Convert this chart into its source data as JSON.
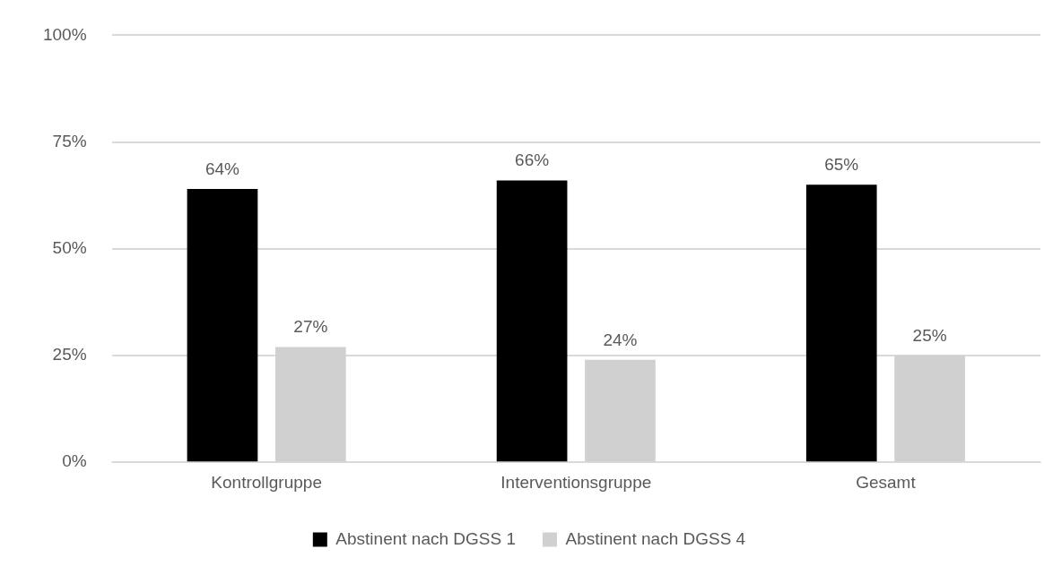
{
  "chart_data": {
    "type": "bar",
    "categories": [
      "Kontrollgruppe",
      "Interventionsgruppe",
      "Gesamt"
    ],
    "series": [
      {
        "name": "Abstinent nach DGSS 1",
        "color": "#000000",
        "values": [
          64,
          66,
          65
        ],
        "value_labels": [
          "64%",
          "66%",
          "65%"
        ]
      },
      {
        "name": "Abstinent nach DGSS 4",
        "color": "#d0d0d0",
        "values": [
          27,
          24,
          25
        ],
        "value_labels": [
          "27%",
          "24%",
          "25%"
        ]
      }
    ],
    "ylim": [
      0,
      100
    ],
    "yticks": [
      {
        "value": 0,
        "label": "0%"
      },
      {
        "value": 25,
        "label": "25%"
      },
      {
        "value": 50,
        "label": "50%"
      },
      {
        "value": 75,
        "label": "75%"
      },
      {
        "value": 100,
        "label": "100%"
      }
    ],
    "grid": "y",
    "legend": "bottom"
  }
}
